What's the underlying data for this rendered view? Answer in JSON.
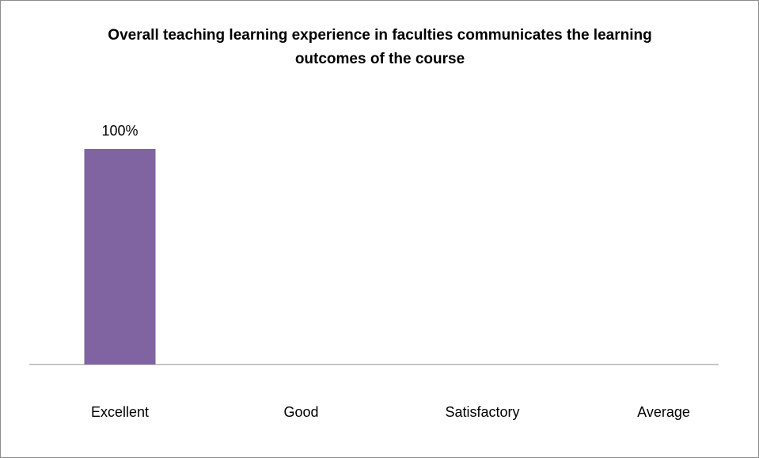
{
  "chart_data": {
    "type": "bar",
    "title": "Overall teaching learning experience in faculties communicates the learning outcomes of the course",
    "categories": [
      "Excellent",
      "Good",
      "Satisfactory",
      "Average"
    ],
    "values": [
      100,
      0,
      0,
      0
    ],
    "value_labels": [
      "100%",
      null,
      null,
      null
    ],
    "color": "#8064a2",
    "ylim": [
      0,
      100
    ],
    "grid": false
  }
}
